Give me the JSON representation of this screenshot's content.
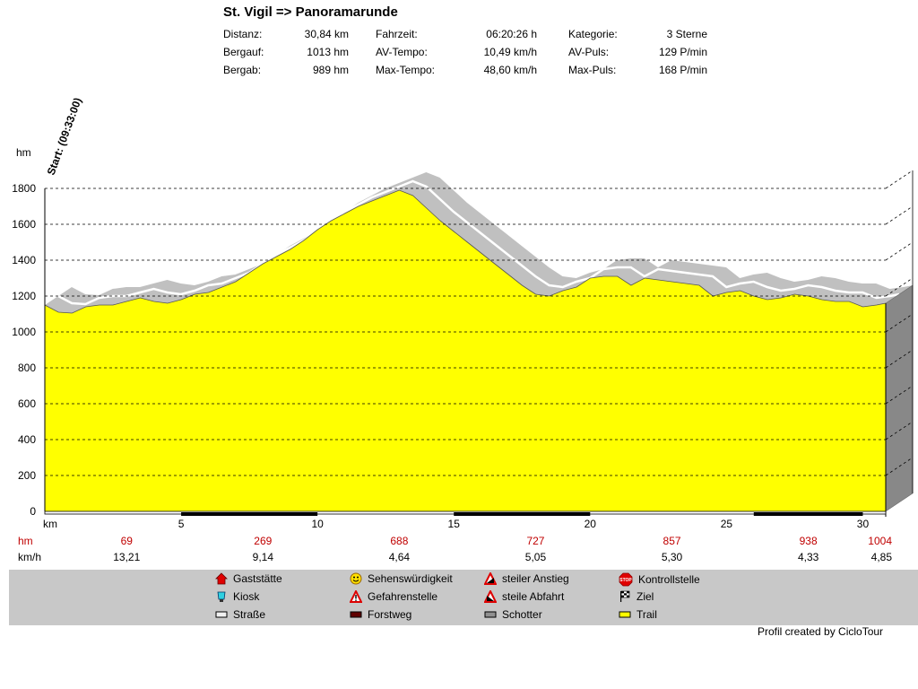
{
  "header": {
    "title": "St. Vigil => Panoramarunde",
    "stats": [
      {
        "label": "Distanz:",
        "value": "30,84 km"
      },
      {
        "label": "Bergauf:",
        "value": "1013 hm"
      },
      {
        "label": "Bergab:",
        "value": "989 hm"
      },
      {
        "label": "Fahrzeit:",
        "value": "06:20:26 h"
      },
      {
        "label": "AV-Tempo:",
        "value": "10,49 km/h"
      },
      {
        "label": "Max-Tempo:",
        "value": "48,60 km/h"
      },
      {
        "label": "Kategorie:",
        "value": "3 Sterne"
      },
      {
        "label": "AV-Puls:",
        "value": "129 P/min"
      },
      {
        "label": "Max-Puls:",
        "value": "168 P/min"
      }
    ]
  },
  "chart_data": {
    "type": "area",
    "start_label": "Start: (09:33:00)",
    "ylabel": "hm",
    "xlabel": "km",
    "ylim": [
      0,
      1800
    ],
    "xlim": [
      0,
      30.84
    ],
    "yticks": [
      0,
      200,
      400,
      600,
      800,
      1000,
      1200,
      1400,
      1600,
      1800
    ],
    "xticks": [
      5,
      10,
      15,
      20,
      25,
      30
    ],
    "grid": true,
    "x": [
      0,
      0.5,
      1,
      1.5,
      2,
      2.5,
      3,
      3.5,
      4,
      4.5,
      5,
      5.5,
      6,
      6.5,
      7,
      7.5,
      8,
      8.5,
      9,
      9.5,
      10,
      10.5,
      11,
      11.5,
      12,
      12.5,
      13,
      13.5,
      14,
      14.5,
      15,
      15.5,
      16,
      16.5,
      17,
      17.5,
      18,
      18.5,
      19,
      19.5,
      20,
      20.5,
      21,
      21.5,
      22,
      22.5,
      23,
      23.5,
      24,
      24.5,
      25,
      25.5,
      26,
      26.5,
      27,
      27.5,
      28,
      28.5,
      29,
      29.5,
      30,
      30.5,
      30.84
    ],
    "elevation": [
      1150,
      1110,
      1105,
      1140,
      1150,
      1150,
      1170,
      1190,
      1170,
      1160,
      1180,
      1210,
      1220,
      1250,
      1280,
      1330,
      1380,
      1420,
      1460,
      1510,
      1570,
      1620,
      1660,
      1700,
      1730,
      1760,
      1790,
      1760,
      1690,
      1620,
      1560,
      1500,
      1440,
      1380,
      1320,
      1260,
      1210,
      1200,
      1230,
      1250,
      1300,
      1310,
      1310,
      1260,
      1300,
      1290,
      1280,
      1270,
      1260,
      1200,
      1220,
      1230,
      1200,
      1180,
      1190,
      1210,
      1200,
      1180,
      1170,
      1170,
      1140,
      1150,
      1160
    ],
    "marker_kms": [
      3,
      8,
      13,
      18,
      23,
      28,
      30.84
    ],
    "rows": [
      {
        "label": "hm",
        "color": "#c00000",
        "values": [
          "69",
          "269",
          "688",
          "727",
          "857",
          "938",
          "1004"
        ]
      },
      {
        "label": "km/h",
        "color": "#000000",
        "values": [
          "13,21",
          "9,14",
          "4,64",
          "5,05",
          "5,30",
          "4,33",
          "4,85"
        ]
      }
    ],
    "surface_segments": [
      {
        "from": 5,
        "to": 10,
        "type": "Forstweg"
      },
      {
        "from": 15,
        "to": 20,
        "type": "Forstweg"
      },
      {
        "from": 26,
        "to": 30,
        "type": "Forstweg"
      }
    ],
    "colors": {
      "fill": "#ffff00",
      "shadow": "#c0c0c0",
      "side": "#888888",
      "grid": "#000000"
    }
  },
  "legend": [
    {
      "label": "Gaststätte",
      "icon": "house-icon"
    },
    {
      "label": "Kiosk",
      "icon": "cup-icon"
    },
    {
      "label": "Straße",
      "icon": "road-swatch-icon"
    },
    {
      "label": "Sehenswürdigkeit",
      "icon": "smiley-icon"
    },
    {
      "label": "Gefahrenstelle",
      "icon": "warning-icon"
    },
    {
      "label": "Forstweg",
      "icon": "forest-road-swatch-icon"
    },
    {
      "label": "steiler Anstieg",
      "icon": "steep-climb-icon"
    },
    {
      "label": "steile Abfahrt",
      "icon": "steep-descent-icon"
    },
    {
      "label": "Schotter",
      "icon": "gravel-swatch-icon"
    },
    {
      "label": "Kontrollstelle",
      "icon": "stop-icon"
    },
    {
      "label": "Ziel",
      "icon": "finish-flag-icon"
    },
    {
      "label": "Trail",
      "icon": "trail-swatch-icon"
    }
  ],
  "footer": "Profil created by CicloTour"
}
